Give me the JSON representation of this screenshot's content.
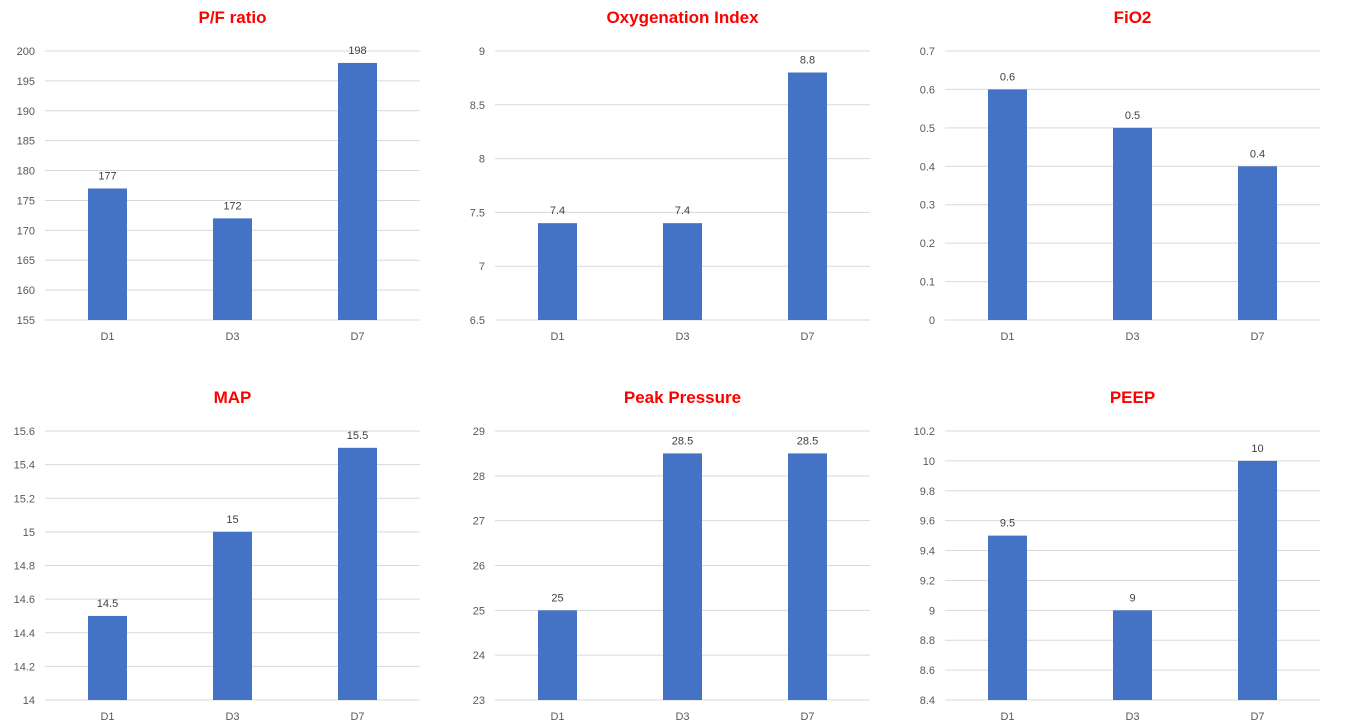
{
  "colors": {
    "bar": "#4472c4",
    "title": "#ff0000"
  },
  "chart_data": [
    {
      "type": "bar",
      "title": "P/F ratio",
      "categories": [
        "D1",
        "D3",
        "D7"
      ],
      "values": [
        177,
        172,
        198
      ],
      "data_labels": [
        "177",
        "172",
        "198"
      ],
      "ylim": [
        155,
        200
      ],
      "yticks": [
        155,
        160,
        165,
        170,
        175,
        180,
        185,
        190,
        195,
        200
      ],
      "ytick_labels": [
        "155",
        "160",
        "165",
        "170",
        "175",
        "180",
        "185",
        "190",
        "195",
        "200"
      ],
      "grid": true
    },
    {
      "type": "bar",
      "title": "Oxygenation Index",
      "categories": [
        "D1",
        "D3",
        "D7"
      ],
      "values": [
        7.4,
        7.4,
        8.8
      ],
      "data_labels": [
        "7.4",
        "7.4",
        "8.8"
      ],
      "ylim": [
        6.5,
        9
      ],
      "yticks": [
        6.5,
        7,
        7.5,
        8,
        8.5,
        9
      ],
      "ytick_labels": [
        "6.5",
        "7",
        "7.5",
        "8",
        "8.5",
        "9"
      ],
      "grid": true
    },
    {
      "type": "bar",
      "title": "FiO2",
      "categories": [
        "D1",
        "D3",
        "D7"
      ],
      "values": [
        0.6,
        0.5,
        0.4
      ],
      "data_labels": [
        "0.6",
        "0.5",
        "0.4"
      ],
      "ylim": [
        0,
        0.7
      ],
      "yticks": [
        0,
        0.1,
        0.2,
        0.3,
        0.4,
        0.5,
        0.6,
        0.7
      ],
      "ytick_labels": [
        "0",
        "0.1",
        "0.2",
        "0.3",
        "0.4",
        "0.5",
        "0.6",
        "0.7"
      ],
      "grid": true
    },
    {
      "type": "bar",
      "title": "MAP",
      "categories": [
        "D1",
        "D3",
        "D7"
      ],
      "values": [
        14.5,
        15,
        15.5
      ],
      "data_labels": [
        "14.5",
        "15",
        "15.5"
      ],
      "ylim": [
        14,
        15.6
      ],
      "yticks": [
        14,
        14.2,
        14.4,
        14.6,
        14.8,
        15,
        15.2,
        15.4,
        15.6
      ],
      "ytick_labels": [
        "14",
        "14.2",
        "14.4",
        "14.6",
        "14.8",
        "15",
        "15.2",
        "15.4",
        "15.6"
      ],
      "grid": true
    },
    {
      "type": "bar",
      "title": "Peak Pressure",
      "categories": [
        "D1",
        "D3",
        "D7"
      ],
      "values": [
        25,
        28.5,
        28.5
      ],
      "data_labels": [
        "25",
        "28.5",
        "28.5"
      ],
      "ylim": [
        23,
        29
      ],
      "yticks": [
        23,
        24,
        25,
        26,
        27,
        28,
        29
      ],
      "ytick_labels": [
        "23",
        "24",
        "25",
        "26",
        "27",
        "28",
        "29"
      ],
      "grid": true
    },
    {
      "type": "bar",
      "title": "PEEP",
      "categories": [
        "D1",
        "D3",
        "D7"
      ],
      "values": [
        9.5,
        9,
        10
      ],
      "data_labels": [
        "9.5",
        "9",
        "10"
      ],
      "ylim": [
        8.4,
        10.2
      ],
      "yticks": [
        8.4,
        8.6,
        8.8,
        9,
        9.2,
        9.4,
        9.6,
        9.8,
        10,
        10.2
      ],
      "ytick_labels": [
        "8.4",
        "8.6",
        "8.8",
        "9",
        "9.2",
        "9.4",
        "9.6",
        "9.8",
        "10",
        "10.2"
      ],
      "grid": true
    }
  ]
}
